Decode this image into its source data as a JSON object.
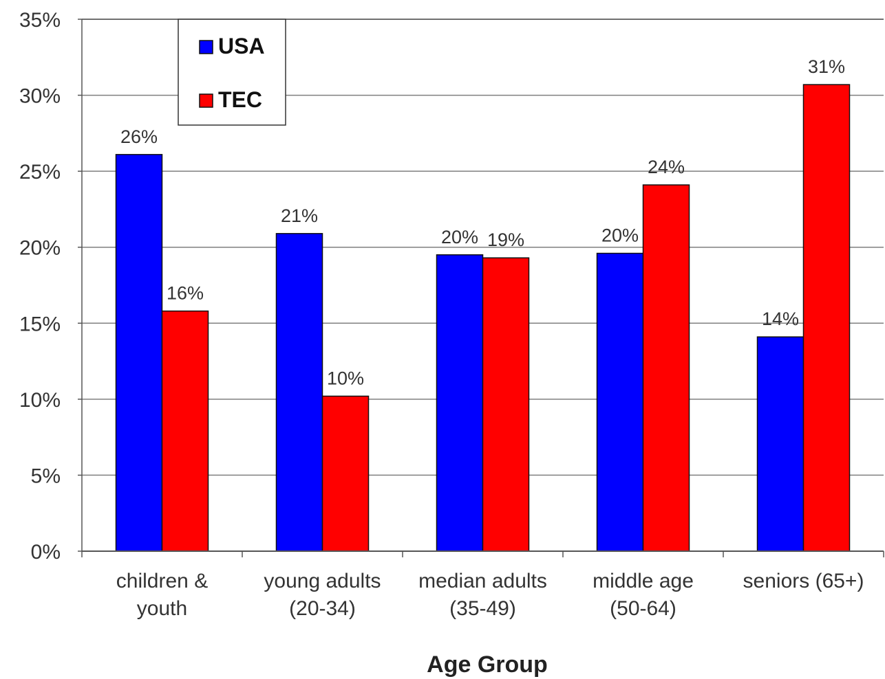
{
  "colors": {
    "USA": "#0000ff",
    "TEC": "#ff0000",
    "grid": "#7f7f7f",
    "axis": "#555555"
  },
  "chart_data": {
    "type": "bar",
    "title": "",
    "xlabel": "Age Group",
    "ylabel": "",
    "ylim": [
      0,
      35
    ],
    "yticks": [
      "0%",
      "5%",
      "10%",
      "15%",
      "20%",
      "25%",
      "30%",
      "35%"
    ],
    "categories": [
      [
        "children &",
        "youth"
      ],
      [
        "young adults",
        "(20-34)"
      ],
      [
        "median adults",
        "(35-49)"
      ],
      [
        "middle age",
        "(50-64)"
      ],
      [
        "seniors (65+)"
      ]
    ],
    "series": [
      {
        "name": "USA",
        "values": [
          26.1,
          20.9,
          19.5,
          19.6,
          14.1
        ],
        "labels": [
          "26%",
          "21%",
          "20%",
          "20%",
          "14%"
        ]
      },
      {
        "name": "TEC",
        "values": [
          15.8,
          10.2,
          19.3,
          24.1,
          30.7
        ],
        "labels": [
          "16%",
          "10%",
          "19%",
          "24%",
          "31%"
        ]
      }
    ],
    "legend": {
      "position": "top-left",
      "entries": [
        "USA",
        "TEC"
      ]
    },
    "grid": true
  }
}
